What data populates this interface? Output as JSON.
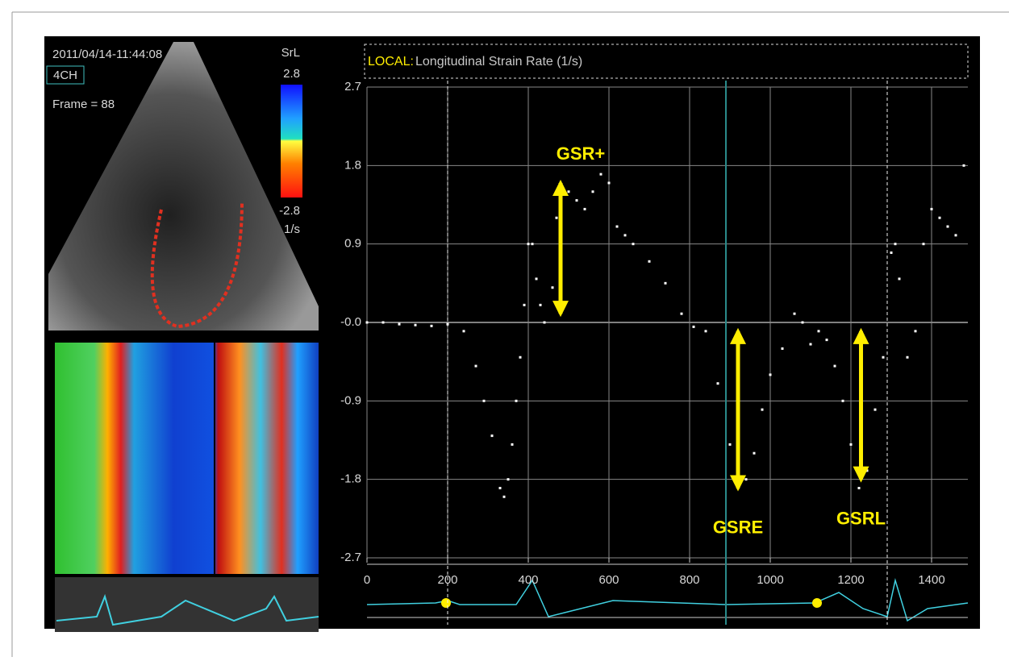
{
  "panel": {
    "timestamp": "2011/04/14-11:44:08",
    "view": "4CH",
    "frame": "Frame = 88",
    "scale_name": "SrL",
    "scale_max": "2.8",
    "scale_min": "-2.8",
    "scale_unit": "1/s"
  },
  "chart_data": {
    "type": "scatter",
    "title_label": "LOCAL:",
    "title": "Longitudinal Strain Rate (1/s)",
    "x": [
      0,
      40,
      80,
      120,
      160,
      200,
      240,
      270,
      290,
      310,
      330,
      340,
      350,
      360,
      370,
      380,
      390,
      400,
      410,
      420,
      430,
      440,
      460,
      470,
      480,
      500,
      520,
      540,
      560,
      580,
      600,
      620,
      640,
      660,
      700,
      740,
      780,
      810,
      840,
      870,
      900,
      920,
      940,
      960,
      980,
      1000,
      1030,
      1060,
      1080,
      1100,
      1120,
      1140,
      1160,
      1180,
      1200,
      1220,
      1240,
      1260,
      1280,
      1300,
      1310,
      1320,
      1340,
      1360,
      1380,
      1400,
      1420,
      1440,
      1460,
      1480
    ],
    "series": [
      {
        "color": "#ffffff",
        "values": [
          0,
          0,
          -0.02,
          -0.03,
          -0.04,
          -0.02,
          -0.1,
          -0.5,
          -0.9,
          -1.3,
          -1.9,
          -2.0,
          -1.8,
          -1.4,
          -0.9,
          -0.4,
          0.2,
          0.9,
          0.9,
          0.5,
          0.2,
          0.0,
          0.4,
          1.2,
          1.6,
          1.5,
          1.4,
          1.3,
          1.5,
          1.7,
          1.6,
          1.1,
          1.0,
          0.9,
          0.7,
          0.45,
          0.1,
          -0.05,
          -0.1,
          -0.7,
          -1.4,
          -1.9,
          -1.8,
          -1.5,
          -1.0,
          -0.6,
          -0.3,
          0.1,
          0.0,
          -0.25,
          -0.1,
          -0.2,
          -0.5,
          -0.9,
          -1.4,
          -1.9,
          -1.7,
          -1.0,
          -0.4,
          0.8,
          0.9,
          0.5,
          -0.4,
          -0.1,
          0.9,
          1.3,
          1.2,
          1.1,
          1.0,
          1.8
        ]
      }
    ],
    "xlim": [
      0,
      1490
    ],
    "ylim": [
      -2.7,
      2.7
    ],
    "xticks": [
      0,
      200,
      400,
      600,
      800,
      1000,
      1200,
      1400
    ],
    "yticks": [
      2.7,
      1.8,
      0.9,
      {
        "value": 0,
        "label": "-0.0"
      },
      -0.9,
      -1.8,
      -2.7
    ],
    "grid": true,
    "markers": [
      200,
      890,
      1290
    ],
    "annotations": [
      {
        "text": "GSR+",
        "x": 480,
        "y_from": 1.6,
        "y_to": 0.1
      },
      {
        "text": "GSRE",
        "x": 920,
        "y_from": -0.1,
        "y_to": -1.9
      },
      {
        "text": "GSRL",
        "x": 1225,
        "y_from": -0.1,
        "y_to": -1.8
      }
    ],
    "annotation_color": "#ffee00"
  }
}
